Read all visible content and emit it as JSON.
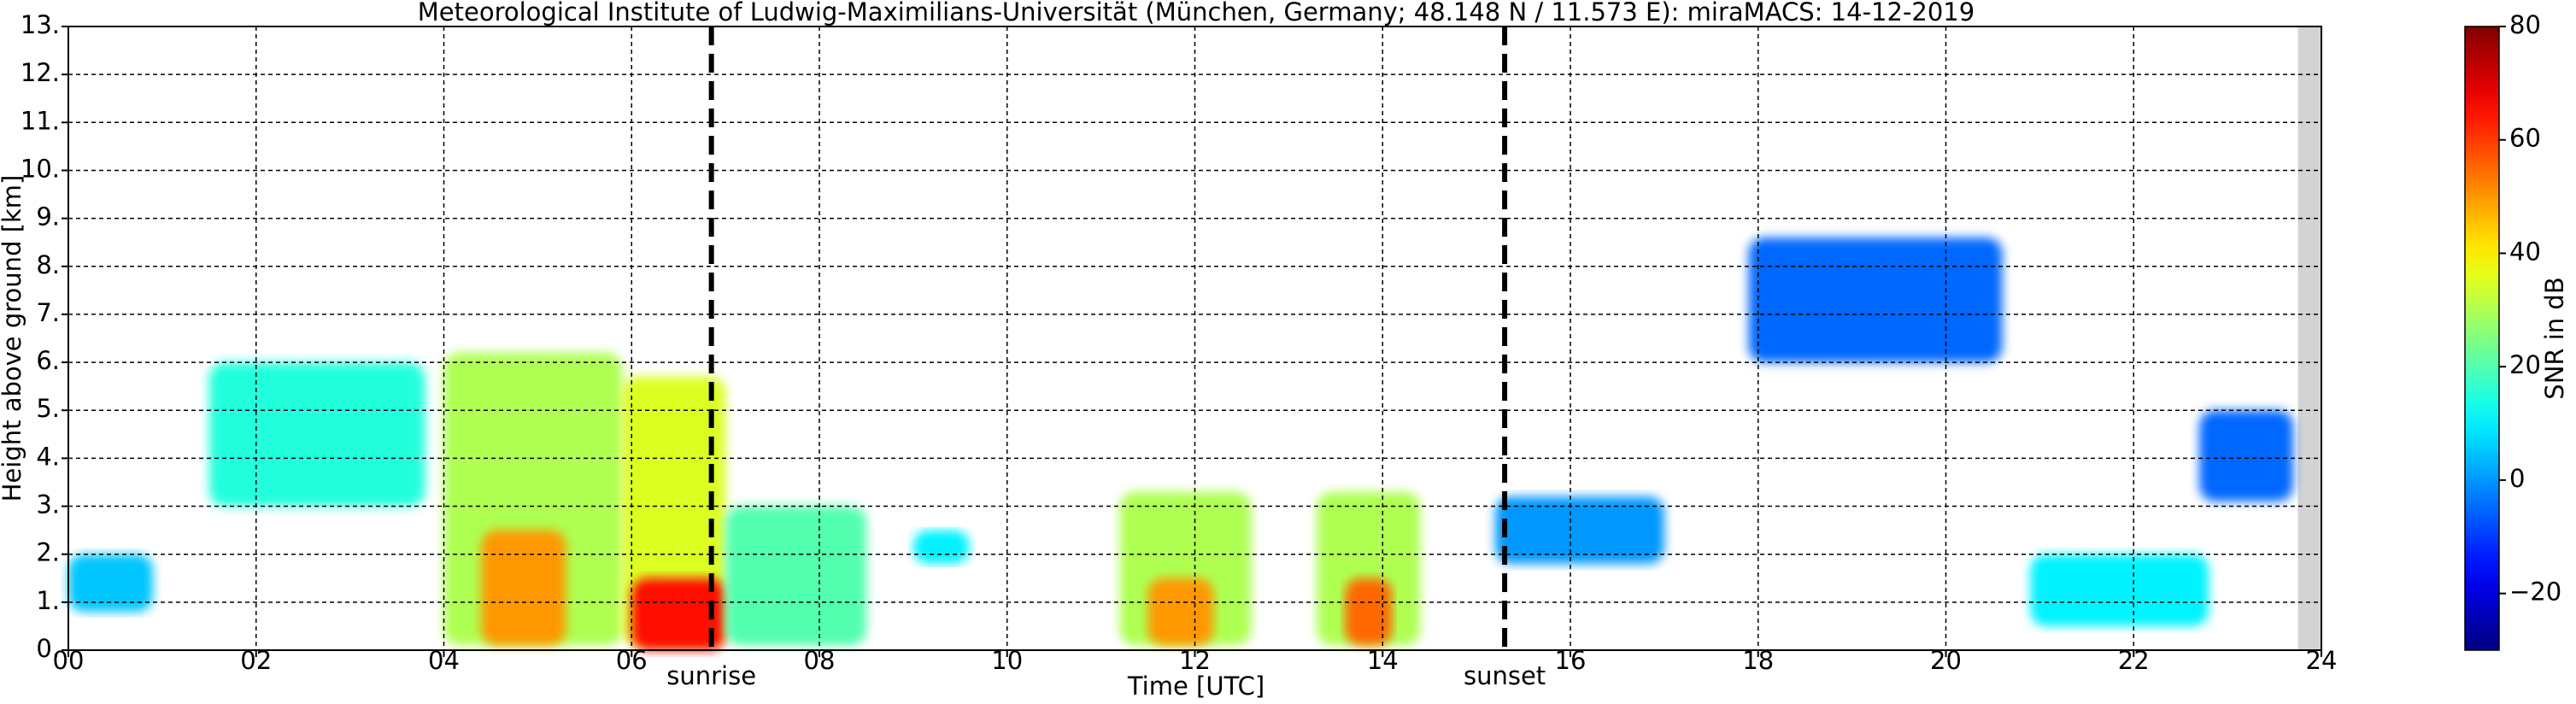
{
  "chart_data": {
    "type": "heatmap",
    "title": "Meteorological Institute of Ludwig-Maximilians-Universität (München, Germany; 48.148 N / 11.573 E):    miraMACS: 14-12-2019",
    "xlabel": "Time [UTC]",
    "ylabel": "Height above ground [km]",
    "xlim": [
      0,
      24
    ],
    "ylim": [
      0,
      13
    ],
    "xticks": [
      {
        "value": 0,
        "label": "00"
      },
      {
        "value": 2,
        "label": "02"
      },
      {
        "value": 4,
        "label": "04"
      },
      {
        "value": 6,
        "label": "06"
      },
      {
        "value": 8,
        "label": "08"
      },
      10,
      12,
      14,
      16,
      18,
      20,
      22,
      24
    ],
    "yticks": [
      {
        "value": 0,
        "label": "0."
      },
      {
        "value": 1,
        "label": "1."
      },
      {
        "value": 2,
        "label": "2."
      },
      {
        "value": 3,
        "label": "3."
      },
      {
        "value": 4,
        "label": "4."
      },
      {
        "value": 5,
        "label": "5."
      },
      {
        "value": 6,
        "label": "6."
      },
      {
        "value": 7,
        "label": "7."
      },
      {
        "value": 8,
        "label": "8."
      },
      {
        "value": 9,
        "label": "9."
      },
      {
        "value": 10,
        "label": "10."
      },
      {
        "value": 11,
        "label": "11."
      },
      {
        "value": 12,
        "label": "12."
      },
      {
        "value": 13,
        "label": "13."
      }
    ],
    "grid": true,
    "colormap": "jet",
    "colorbar": {
      "label": "SNR in dB",
      "lim": [
        -30,
        80
      ],
      "ticks": [
        {
          "value": -20,
          "label": "−20"
        },
        0,
        20,
        40,
        60,
        80
      ]
    },
    "missing_x": [
      23.75,
      24
    ],
    "annotations": [
      {
        "text": "sunrise",
        "x": 6.85
      },
      {
        "text": "sunset",
        "x": 15.3
      }
    ],
    "patches": [
      {
        "x": [
          0,
          0.9
        ],
        "y": [
          0.8,
          2.0
        ],
        "snr": 5
      },
      {
        "x": [
          1.5,
          3.8
        ],
        "y": [
          3.0,
          6.0
        ],
        "snr": 15
      },
      {
        "x": [
          4.0,
          5.9
        ],
        "y": [
          0.1,
          6.2
        ],
        "snr": 30
      },
      {
        "x": [
          4.4,
          5.3
        ],
        "y": [
          0.1,
          2.5
        ],
        "snr": 50
      },
      {
        "x": [
          5.9,
          7.0
        ],
        "y": [
          0.1,
          5.7
        ],
        "snr": 35
      },
      {
        "x": [
          6.0,
          7.0
        ],
        "y": [
          0,
          1.5
        ],
        "snr": 65
      },
      {
        "x": [
          7.0,
          8.5
        ],
        "y": [
          0.1,
          3.0
        ],
        "snr": 20
      },
      {
        "x": [
          9.0,
          9.6
        ],
        "y": [
          1.8,
          2.5
        ],
        "snr": 10
      },
      {
        "x": [
          11.2,
          12.6
        ],
        "y": [
          0.1,
          3.3
        ],
        "snr": 30
      },
      {
        "x": [
          11.5,
          12.2
        ],
        "y": [
          0.1,
          1.5
        ],
        "snr": 50
      },
      {
        "x": [
          13.3,
          14.4
        ],
        "y": [
          0.1,
          3.3
        ],
        "snr": 30
      },
      {
        "x": [
          13.6,
          14.1
        ],
        "y": [
          0.1,
          1.5
        ],
        "snr": 55
      },
      {
        "x": [
          15.2,
          17.0
        ],
        "y": [
          1.8,
          3.2
        ],
        "snr": 0
      },
      {
        "x": [
          17.9,
          20.6
        ],
        "y": [
          6.0,
          8.6
        ],
        "snr": -5
      },
      {
        "x": [
          20.9,
          22.8
        ],
        "y": [
          0.5,
          2.0
        ],
        "snr": 10
      },
      {
        "x": [
          22.7,
          23.7
        ],
        "y": [
          3.1,
          5.0
        ],
        "snr": -5
      }
    ]
  }
}
